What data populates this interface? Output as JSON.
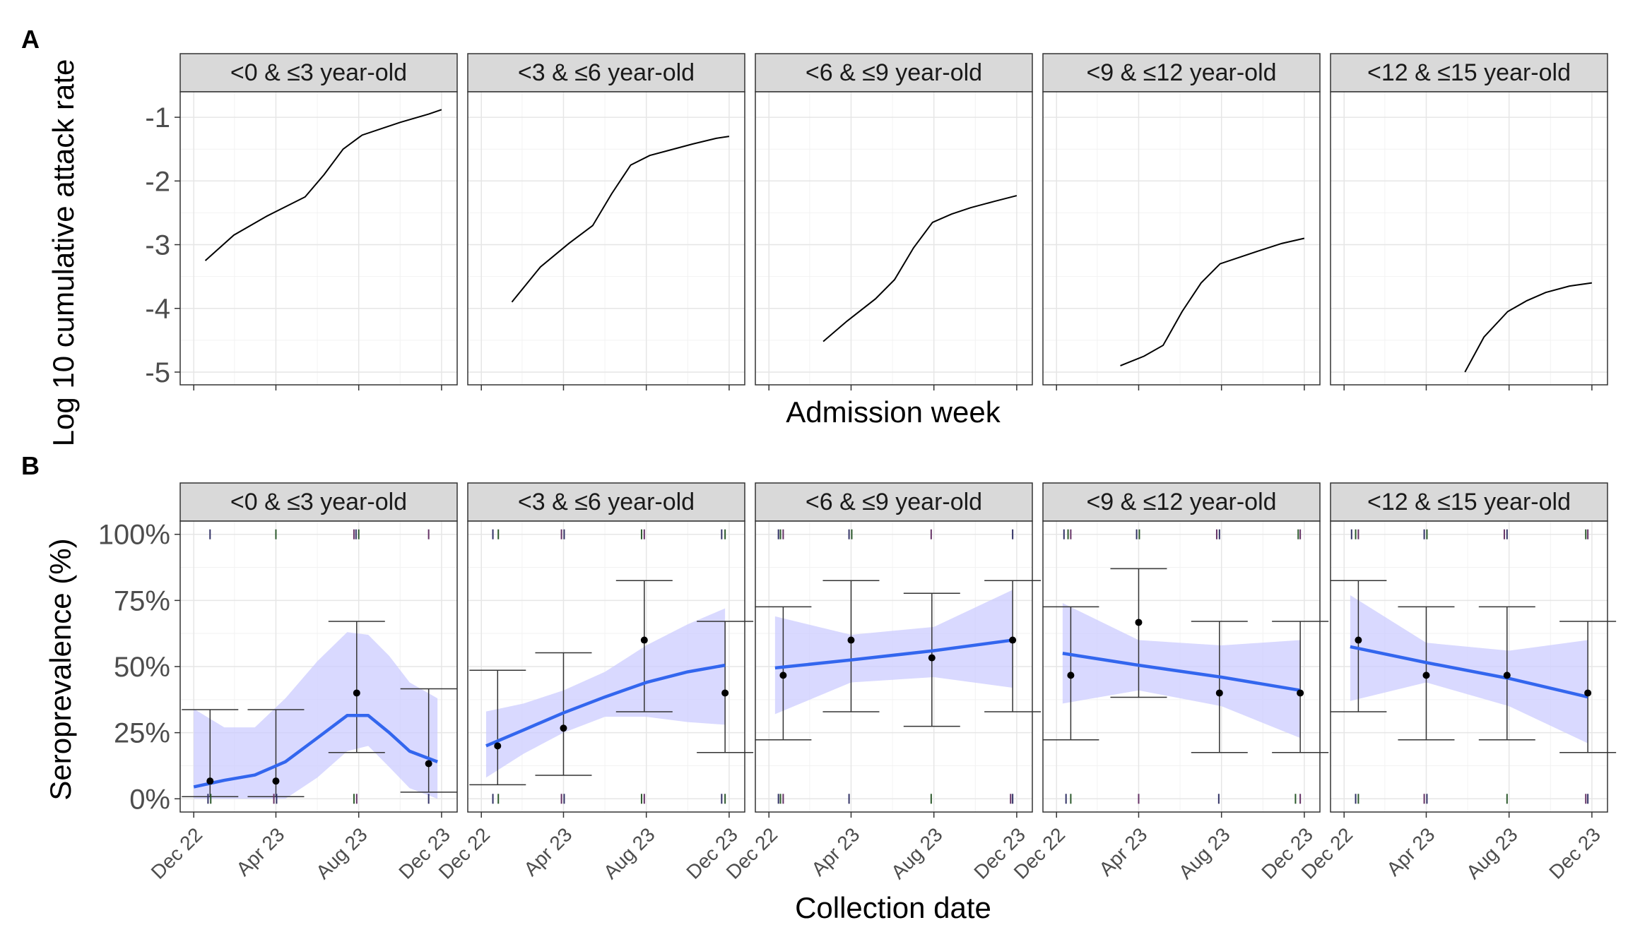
{
  "panel_labels": {
    "a": "A",
    "b": "B"
  },
  "colors": {
    "smooth": "#3366ee",
    "ribbon": "#ccccff",
    "points": "#000000",
    "strip": "#d9d9d9",
    "rug": [
      "#333366",
      "#2d5a2d",
      "#663366"
    ]
  },
  "chart_data": [
    {
      "type": "line",
      "facets": [
        "<0 & ≤3 year-old",
        "<3 & ≤6 year-old",
        "<6 & ≤9 year-old",
        "<9 & ≤12 year-old",
        "<12 & ≤15 year-old"
      ],
      "xlabel": "Admission week",
      "ylabel": "Log 10 cumulative attack rate",
      "y_ticks": [
        "-1",
        "-2",
        "-3",
        "-4",
        "-5"
      ],
      "y_tick_values": [
        -1,
        -2,
        -3,
        -4,
        -5
      ],
      "ylim": [
        -5.2,
        -0.6
      ],
      "x_ticks_date": [
        "2022-12-01",
        "2023-04-01",
        "2023-08-01",
        "2023-12-01"
      ],
      "xlim": [
        "2022-11-11",
        "2023-12-24"
      ],
      "x_tick_labels_shown": false,
      "grid": true,
      "series": [
        {
          "x": [
            "2022-12-18",
            "2023-01-29",
            "2023-03-19",
            "2023-05-14",
            "2023-06-11",
            "2023-07-09",
            "2023-08-06",
            "2023-09-03",
            "2023-10-01",
            "2023-11-12",
            "2023-12-01"
          ],
          "y": [
            -3.25,
            -2.85,
            -2.55,
            -2.25,
            -1.9,
            -1.5,
            -1.28,
            -1.18,
            -1.08,
            -0.95,
            -0.88
          ]
        },
        {
          "x": [
            "2023-01-15",
            "2023-02-26",
            "2023-04-09",
            "2023-05-14",
            "2023-06-11",
            "2023-07-09",
            "2023-08-06",
            "2023-09-03",
            "2023-10-08",
            "2023-11-12",
            "2023-12-01"
          ],
          "y": [
            -3.9,
            -3.35,
            -2.98,
            -2.7,
            -2.2,
            -1.75,
            -1.6,
            -1.52,
            -1.42,
            -1.33,
            -1.3
          ]
        },
        {
          "x": [
            "2023-02-19",
            "2023-03-26",
            "2023-05-07",
            "2023-06-04",
            "2023-07-02",
            "2023-07-30",
            "2023-08-27",
            "2023-09-24",
            "2023-10-29",
            "2023-12-01"
          ],
          "y": [
            -4.52,
            -4.2,
            -3.85,
            -3.55,
            -3.05,
            -2.65,
            -2.52,
            -2.42,
            -2.32,
            -2.23
          ]
        },
        {
          "x": [
            "2023-03-05",
            "2023-04-09",
            "2023-05-07",
            "2023-06-04",
            "2023-07-02",
            "2023-07-30",
            "2023-08-27",
            "2023-09-24",
            "2023-10-29",
            "2023-12-01"
          ],
          "y": [
            -4.9,
            -4.75,
            -4.58,
            -4.05,
            -3.6,
            -3.3,
            -3.2,
            -3.1,
            -2.98,
            -2.9
          ]
        },
        {
          "x": [
            "2023-05-28",
            "2023-06-25",
            "2023-07-30",
            "2023-08-27",
            "2023-09-24",
            "2023-10-29",
            "2023-12-01"
          ],
          "y": [
            -5.0,
            -4.45,
            -4.05,
            -3.88,
            -3.75,
            -3.65,
            -3.6
          ]
        }
      ]
    },
    {
      "type": "scatter",
      "facets": [
        "<0 & ≤3 year-old",
        "<3 & ≤6 year-old",
        "<6 & ≤9 year-old",
        "<9 & ≤12 year-old",
        "<12 & ≤15 year-old"
      ],
      "xlabel": "Collection date",
      "ylabel": "Seroprevalence (%)",
      "y_ticks": [
        "100%",
        "75%",
        "50%",
        "25%",
        "0%"
      ],
      "y_tick_values": [
        100,
        75,
        50,
        25,
        0
      ],
      "ylim": [
        -5,
        105
      ],
      "x_ticks": [
        "Dec 22",
        "Apr 23",
        "Aug 23",
        "Dec 23"
      ],
      "x_ticks_date": [
        "2022-12-01",
        "2023-04-01",
        "2023-08-01",
        "2023-12-01"
      ],
      "xlim": [
        "2022-11-11",
        "2023-12-24"
      ],
      "grid": true,
      "series": [
        {
          "points": [
            {
              "x": "2022-12-25",
              "y": 6.7,
              "lo": 0.8,
              "hi": 33.7
            },
            {
              "x": "2023-04-01",
              "y": 6.7,
              "lo": 0.8,
              "hi": 33.7
            },
            {
              "x": "2023-07-29",
              "y": 40.0,
              "lo": 17.5,
              "hi": 67.1
            },
            {
              "x": "2023-11-12",
              "y": 13.3,
              "lo": 2.5,
              "hi": 41.6
            }
          ],
          "smooth_x": [
            "2022-12-01",
            "2023-01-15",
            "2023-03-01",
            "2023-04-15",
            "2023-06-01",
            "2023-07-15",
            "2023-08-15",
            "2023-09-15",
            "2023-10-15",
            "2023-11-25"
          ],
          "smooth_y": [
            4.5,
            7.0,
            9.0,
            14.0,
            23.0,
            31.5,
            31.5,
            25.0,
            18.0,
            14.0
          ],
          "ribbon_lo": [
            0,
            0,
            0,
            0,
            8,
            18,
            20,
            12,
            4,
            0
          ],
          "ribbon_hi": [
            34,
            27,
            27,
            38,
            52,
            63,
            62,
            54,
            44,
            38
          ],
          "rug_top": [
            "2022-12-25",
            "2023-04-01",
            "2023-07-25",
            "2023-07-28",
            "2023-08-01",
            "2023-11-12"
          ],
          "rug_bottom": [
            "2022-12-22",
            "2022-12-26",
            "2023-03-29",
            "2023-04-02",
            "2023-07-25",
            "2023-07-29",
            "2023-11-12"
          ]
        },
        {
          "points": [
            {
              "x": "2022-12-25",
              "y": 20.0,
              "lo": 5.3,
              "hi": 48.6
            },
            {
              "x": "2023-04-01",
              "y": 26.7,
              "lo": 8.9,
              "hi": 55.2
            },
            {
              "x": "2023-07-29",
              "y": 60.0,
              "lo": 32.9,
              "hi": 82.5
            },
            {
              "x": "2023-11-25",
              "y": 40.0,
              "lo": 17.5,
              "hi": 67.1
            }
          ],
          "smooth_x": [
            "2022-12-08",
            "2023-02-01",
            "2023-04-01",
            "2023-06-01",
            "2023-08-01",
            "2023-10-01",
            "2023-11-25"
          ],
          "smooth_y": [
            20.0,
            26.0,
            32.5,
            38.5,
            44.0,
            48.0,
            50.5
          ],
          "ribbon_lo": [
            8,
            17,
            25,
            31,
            31,
            29,
            28
          ],
          "ribbon_hi": [
            33,
            36,
            41,
            48,
            58,
            66,
            72
          ],
          "rug_top": [
            "2022-12-18",
            "2022-12-26",
            "2023-03-29",
            "2023-04-02",
            "2023-07-25",
            "2023-07-29",
            "2023-11-20",
            "2023-11-25"
          ],
          "rug_bottom": [
            "2022-12-18",
            "2022-12-26",
            "2023-03-29",
            "2023-04-02",
            "2023-07-25",
            "2023-07-29",
            "2023-11-20",
            "2023-11-25"
          ]
        },
        {
          "points": [
            {
              "x": "2022-12-22",
              "y": 46.7,
              "lo": 22.3,
              "hi": 72.6
            },
            {
              "x": "2023-04-01",
              "y": 60.0,
              "lo": 32.9,
              "hi": 82.5
            },
            {
              "x": "2023-07-29",
              "y": 53.3,
              "lo": 27.4,
              "hi": 77.7
            },
            {
              "x": "2023-11-25",
              "y": 60.0,
              "lo": 32.9,
              "hi": 82.5
            }
          ],
          "smooth_x": [
            "2022-12-10",
            "2023-04-01",
            "2023-08-01",
            "2023-11-25"
          ],
          "smooth_y": [
            49.5,
            52.5,
            56.0,
            60.0
          ],
          "ribbon_lo": [
            32,
            44,
            46,
            42
          ],
          "ribbon_hi": [
            69,
            62,
            65,
            79
          ],
          "rug_top": [
            "2022-12-15",
            "2022-12-18",
            "2022-12-22",
            "2023-03-29",
            "2023-04-02",
            "2023-07-28",
            "2023-11-25"
          ],
          "rug_bottom": [
            "2022-12-15",
            "2022-12-18",
            "2022-12-22",
            "2023-03-29",
            "2023-07-28",
            "2023-11-22",
            "2023-11-25"
          ]
        },
        {
          "points": [
            {
              "x": "2022-12-22",
              "y": 46.7,
              "lo": 22.3,
              "hi": 72.6
            },
            {
              "x": "2023-04-01",
              "y": 66.7,
              "lo": 38.4,
              "hi": 87.0
            },
            {
              "x": "2023-07-29",
              "y": 40.0,
              "lo": 17.5,
              "hi": 67.1
            },
            {
              "x": "2023-11-25",
              "y": 40.0,
              "lo": 17.5,
              "hi": 67.1
            }
          ],
          "smooth_x": [
            "2022-12-10",
            "2023-04-01",
            "2023-08-01",
            "2023-11-25"
          ],
          "smooth_y": [
            55.0,
            50.5,
            46.0,
            41.0
          ],
          "ribbon_lo": [
            36,
            41,
            35,
            23
          ],
          "ribbon_hi": [
            74,
            60,
            58,
            60
          ],
          "rug_top": [
            "2022-12-12",
            "2022-12-18",
            "2022-12-22",
            "2023-03-29",
            "2023-04-02",
            "2023-07-25",
            "2023-07-29",
            "2023-11-22",
            "2023-11-25"
          ],
          "rug_bottom": [
            "2022-12-15",
            "2022-12-22",
            "2023-04-01",
            "2023-07-28",
            "2023-11-18",
            "2023-11-25"
          ]
        },
        {
          "points": [
            {
              "x": "2022-12-22",
              "y": 60.0,
              "lo": 32.9,
              "hi": 82.5
            },
            {
              "x": "2023-04-01",
              "y": 46.7,
              "lo": 22.3,
              "hi": 72.6
            },
            {
              "x": "2023-07-29",
              "y": 46.7,
              "lo": 22.3,
              "hi": 72.6
            },
            {
              "x": "2023-11-25",
              "y": 40.0,
              "lo": 17.5,
              "hi": 67.1
            }
          ],
          "smooth_x": [
            "2022-12-10",
            "2023-04-01",
            "2023-08-01",
            "2023-11-25"
          ],
          "smooth_y": [
            57.5,
            51.5,
            45.5,
            38.5
          ],
          "ribbon_lo": [
            37,
            44,
            35,
            21
          ],
          "ribbon_hi": [
            77,
            59,
            56,
            60
          ],
          "rug_top": [
            "2022-12-12",
            "2022-12-18",
            "2022-12-22",
            "2023-03-29",
            "2023-04-02",
            "2023-07-25",
            "2023-07-29",
            "2023-11-22",
            "2023-11-25"
          ],
          "rug_bottom": [
            "2022-12-18",
            "2022-12-22",
            "2023-03-29",
            "2023-04-02",
            "2023-07-29",
            "2023-11-22",
            "2023-11-25"
          ]
        }
      ]
    }
  ]
}
